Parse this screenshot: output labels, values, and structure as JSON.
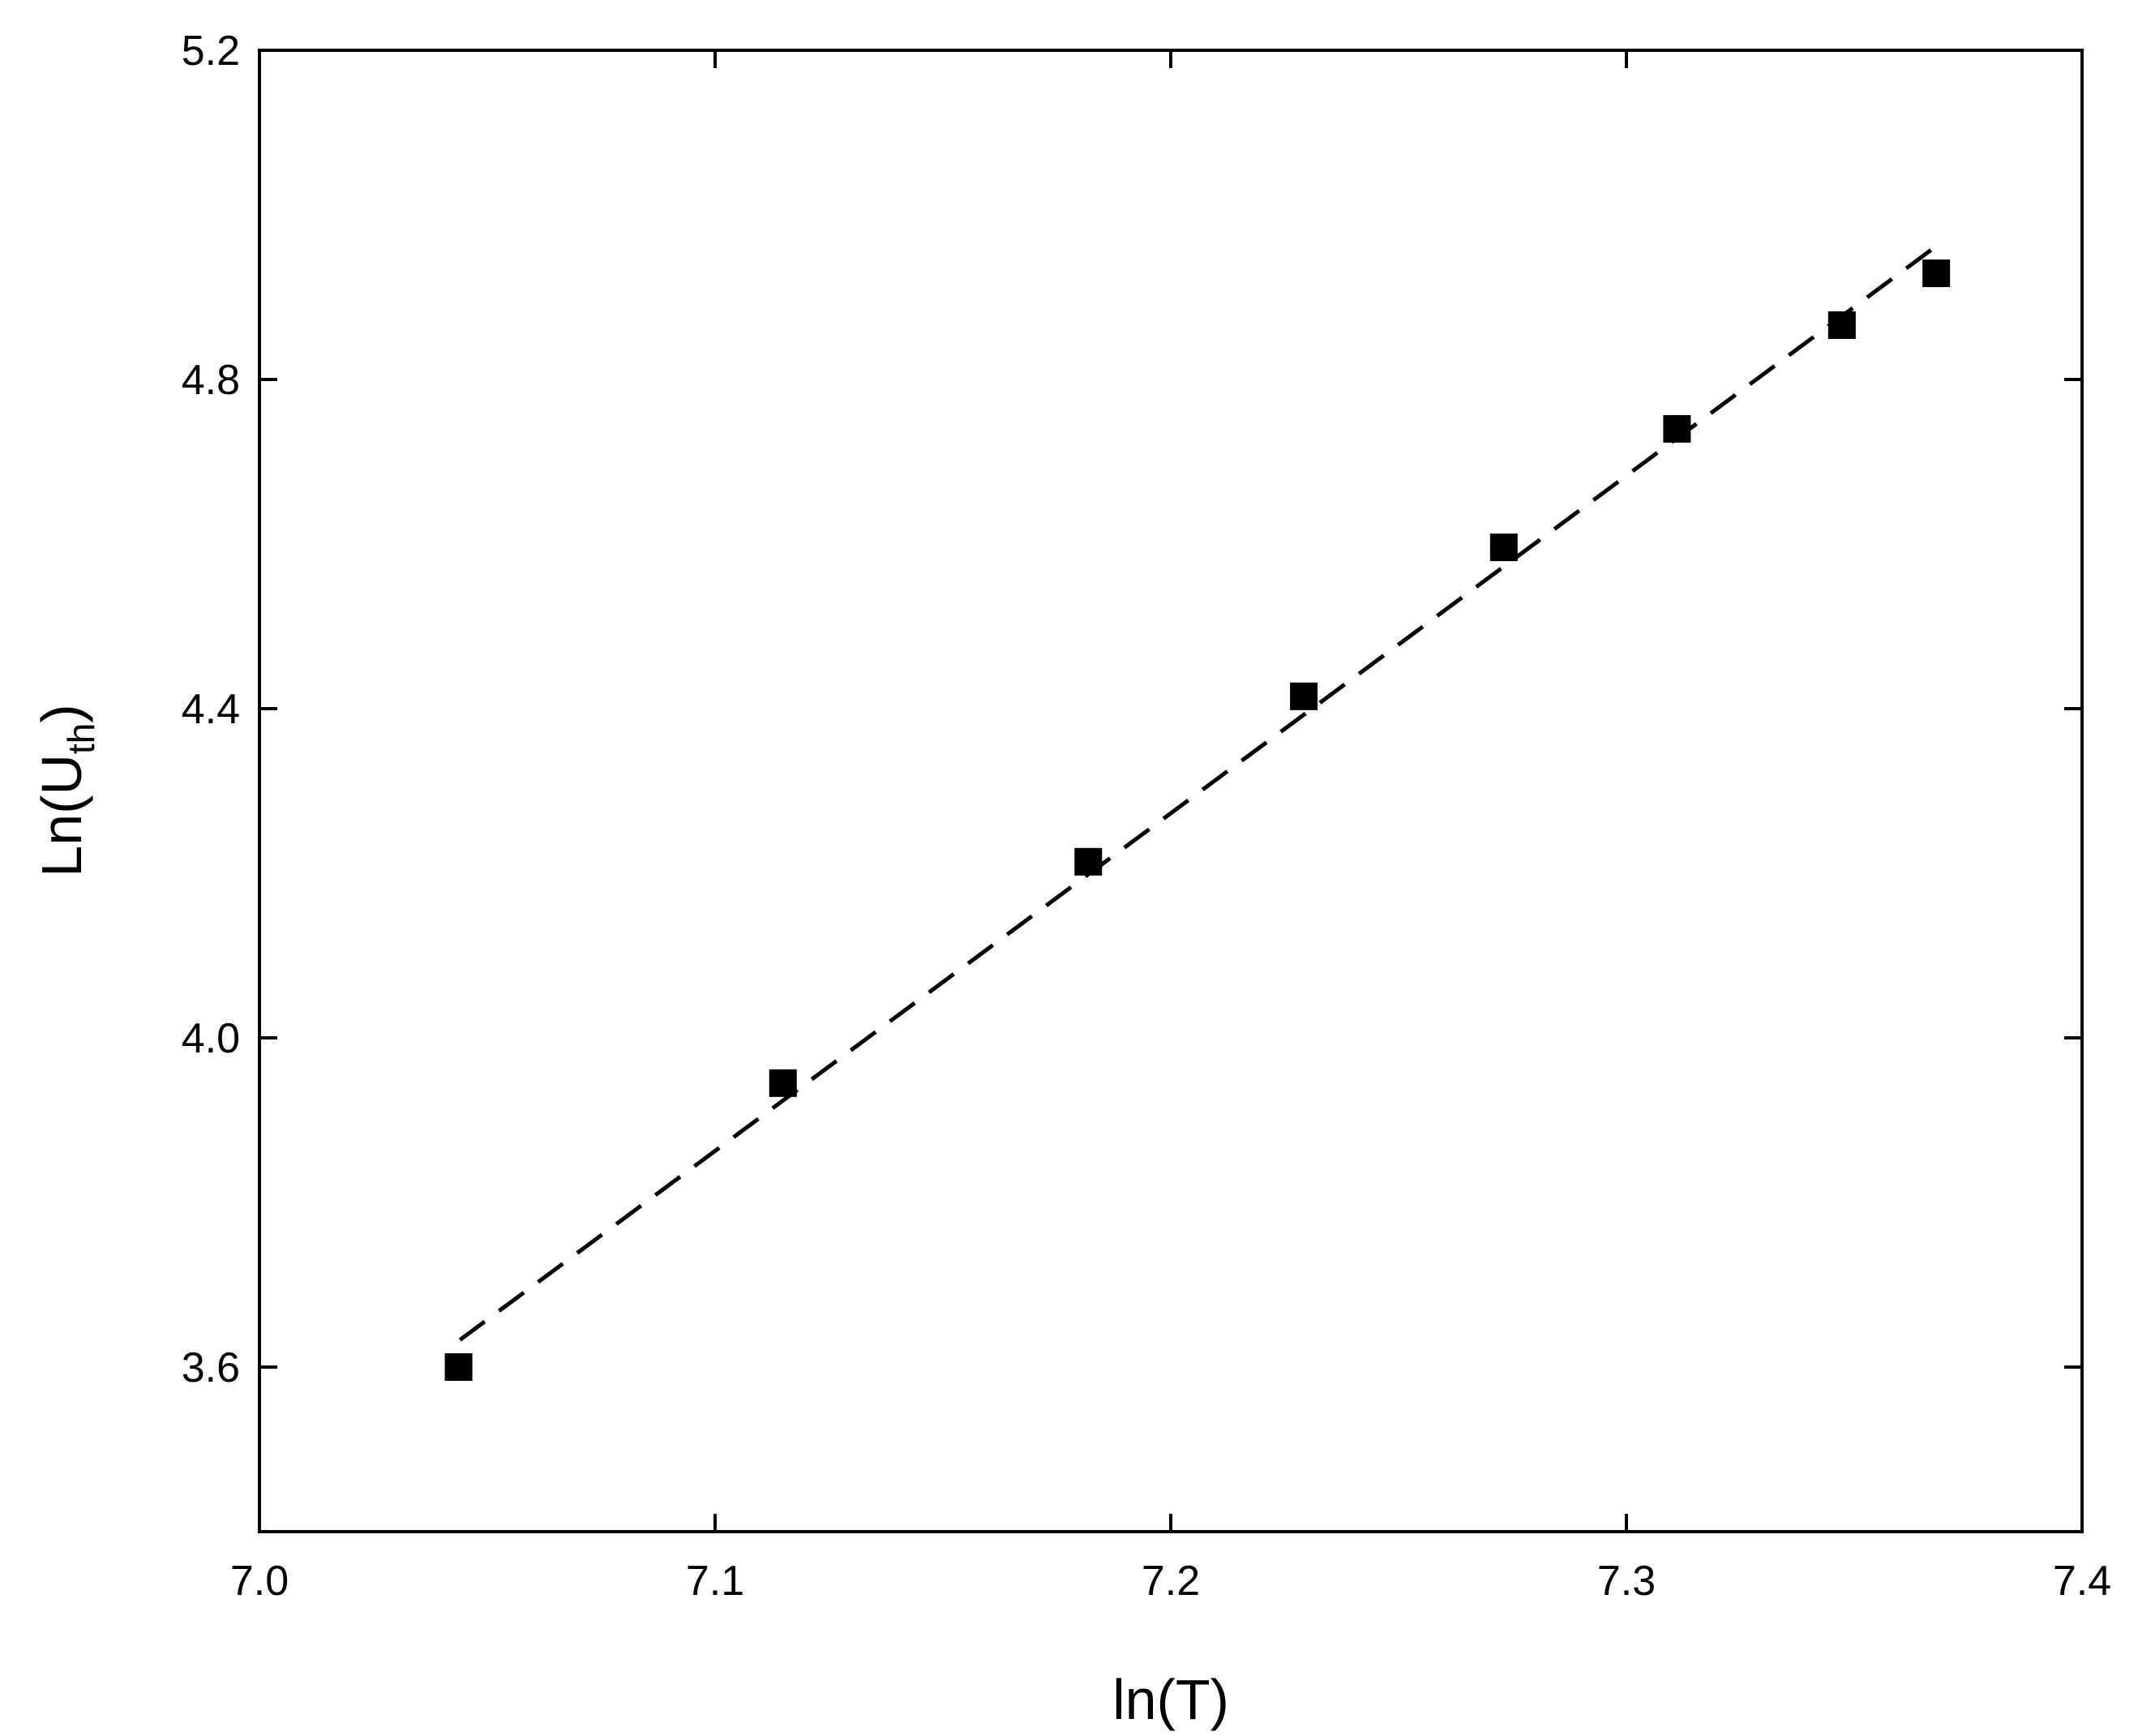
{
  "chart_data": {
    "type": "scatter",
    "xlabel": "ln(T)",
    "ylabel": [
      "Ln(U",
      "th",
      ")"
    ],
    "xlim": [
      7.0,
      7.4
    ],
    "xticks": [
      {
        "value": 7,
        "label": "7.0"
      },
      7.1,
      7.2,
      7.3,
      7.4
    ],
    "ylim": [
      3.4,
      5.2
    ],
    "yticks": [
      3.6,
      {
        "value": 4,
        "label": "4.0"
      },
      4.4,
      4.8,
      5.2
    ],
    "series": [
      {
        "color": "#000000",
        "marker": "square",
        "x": [
          7.0437,
          7.1149,
          7.1819,
          7.2292,
          7.2731,
          7.3111,
          7.3473,
          7.368
        ],
        "values": [
          3.6,
          3.945,
          4.214,
          4.415,
          4.596,
          4.74,
          4.866,
          4.929
        ]
      },
      {
        "color": "#000000",
        "line": "dashed",
        "x": [
          7.044,
          7.368
        ],
        "values": [
          3.633,
          4.962
        ]
      }
    ]
  }
}
